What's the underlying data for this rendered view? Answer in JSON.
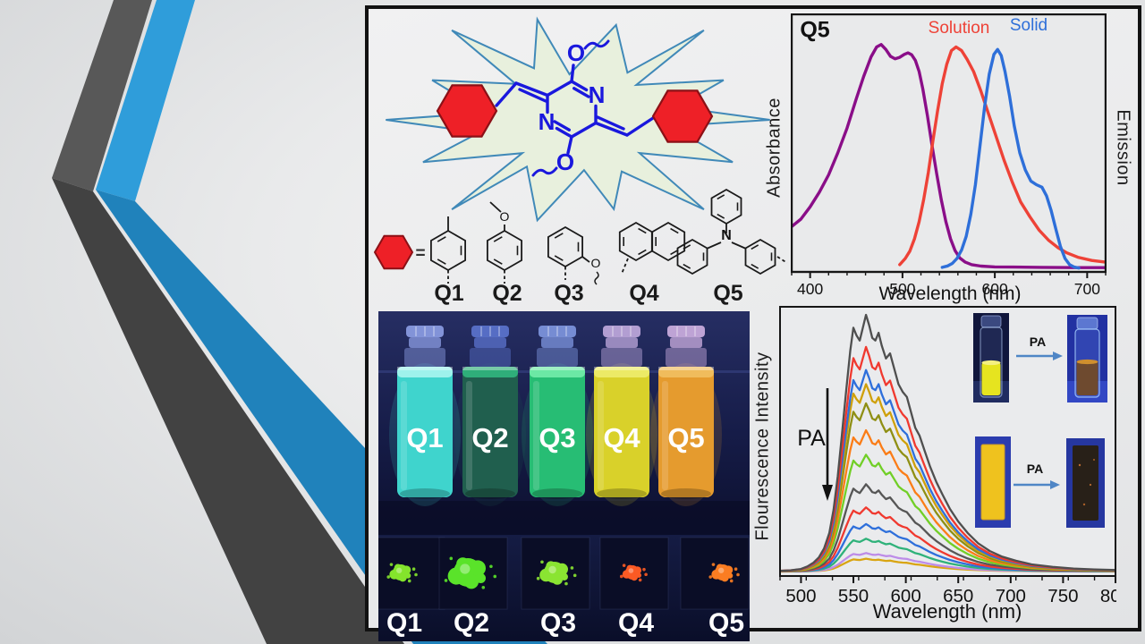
{
  "slide": {
    "ribbon_gray": "#585858",
    "ribbon_gray_dark": "#424242",
    "ribbon_blue": "#2f9dda",
    "ribbon_blue_dark": "#2082bb"
  },
  "figure": {
    "panel_border": "#121212",
    "scheme": {
      "equals_sign": "=",
      "atoms": {
        "n_right": "N",
        "n_left": "N",
        "o_top": "O",
        "o_bottom": "O"
      },
      "substituents": [
        {
          "label": "Q1",
          "atom": ""
        },
        {
          "label": "Q2",
          "atom": "O"
        },
        {
          "label": "Q3",
          "atom": "O"
        },
        {
          "label": "Q4",
          "atom": ""
        },
        {
          "label": "Q5",
          "atom": "N"
        }
      ],
      "colors": {
        "molecule": "#1a18dd",
        "aryl": "#ee2027",
        "aryl_edge": "#8c1016",
        "burst_fill": "#e8f0dd",
        "burst_edge": "#4089b8",
        "bond": "#1a1a1a"
      }
    },
    "photo": {
      "vials": [
        {
          "label": "Q1",
          "glow": "#3fd4cd",
          "bright": "#9ef2ec",
          "cap": "#8d9fe6"
        },
        {
          "label": "Q2",
          "glow": "#205f4e",
          "bright": "#2fae7a",
          "cap": "#5c74cf"
        },
        {
          "label": "Q3",
          "glow": "#27bd74",
          "bright": "#6ce8a5",
          "cap": "#7f97e0"
        },
        {
          "label": "Q4",
          "glow": "#d9d12a",
          "bright": "#ecea66",
          "cap": "#c2abdf"
        },
        {
          "label": "Q5",
          "glow": "#e59b2e",
          "bright": "#f0bc5c",
          "cap": "#cfb0e2"
        }
      ],
      "powders": [
        {
          "label": "Q1",
          "color": "#84e42c",
          "size": 9
        },
        {
          "label": "Q2",
          "color": "#5ae32a",
          "size": 16
        },
        {
          "label": "Q3",
          "color": "#8ae432",
          "size": 12
        },
        {
          "label": "Q4",
          "color": "#fb5a24",
          "size": 8
        },
        {
          "label": "Q5",
          "color": "#fb7d22",
          "size": 9
        }
      ]
    }
  },
  "chart_data": [
    {
      "id": "spectra",
      "type": "line",
      "title": "Q5",
      "xlabel": "Wavelength (nm)",
      "ylabel_left": "Absorbance",
      "ylabel_right": "Emission",
      "xlim": [
        380,
        720
      ],
      "xticks": [
        400,
        500,
        600,
        700
      ],
      "xminor_step": 20,
      "grid": false,
      "legend": [
        {
          "label": "Solution",
          "color": "#ee4237"
        },
        {
          "label": "Solid",
          "color": "#2e6fd9"
        }
      ],
      "series": [
        {
          "name": "Absorbance (solution)",
          "color": "#8a0e88",
          "x": [
            380,
            390,
            400,
            410,
            420,
            430,
            440,
            450,
            458,
            466,
            472,
            477,
            482,
            487,
            492,
            497,
            502,
            506,
            510,
            514,
            518,
            522,
            527,
            532,
            537,
            542,
            547,
            552,
            557,
            562,
            568,
            575,
            585,
            600,
            620,
            650,
            690,
            720
          ],
          "y": [
            0.17,
            0.2,
            0.25,
            0.31,
            0.38,
            0.47,
            0.57,
            0.69,
            0.78,
            0.86,
            0.9,
            0.91,
            0.89,
            0.862,
            0.852,
            0.858,
            0.87,
            0.876,
            0.868,
            0.845,
            0.8,
            0.73,
            0.62,
            0.5,
            0.385,
            0.28,
            0.19,
            0.12,
            0.072,
            0.042,
            0.025,
            0.015,
            0.009,
            0.006,
            0.005,
            0.004,
            0.003,
            0.003
          ]
        },
        {
          "name": "Solution emission",
          "color": "#ee4237",
          "x": [
            497,
            503,
            508,
            513,
            518,
            523,
            528,
            533,
            538,
            543,
            548,
            553,
            558,
            564,
            570,
            577,
            585,
            593,
            601,
            610,
            619,
            628,
            638,
            648,
            658,
            668,
            678,
            690,
            705,
            720
          ],
          "y": [
            0.015,
            0.04,
            0.07,
            0.12,
            0.19,
            0.28,
            0.39,
            0.52,
            0.64,
            0.75,
            0.83,
            0.885,
            0.9,
            0.885,
            0.85,
            0.8,
            0.72,
            0.63,
            0.54,
            0.44,
            0.35,
            0.27,
            0.21,
            0.155,
            0.115,
            0.085,
            0.063,
            0.045,
            0.032,
            0.025
          ]
        },
        {
          "name": "Solid emission",
          "color": "#2e6fd9",
          "x": [
            543,
            549,
            554,
            559,
            564,
            569,
            574,
            579,
            584,
            589,
            594,
            599,
            603,
            607,
            611,
            616,
            621,
            627,
            633,
            639,
            645,
            651,
            656,
            661,
            666,
            671,
            676,
            681,
            686,
            691
          ],
          "y": [
            0.004,
            0.01,
            0.02,
            0.04,
            0.075,
            0.13,
            0.22,
            0.34,
            0.5,
            0.66,
            0.79,
            0.87,
            0.89,
            0.865,
            0.8,
            0.7,
            0.58,
            0.47,
            0.4,
            0.355,
            0.34,
            0.33,
            0.295,
            0.235,
            0.16,
            0.09,
            0.04,
            0.015,
            0.005,
            0.001
          ]
        }
      ]
    },
    {
      "id": "quench",
      "type": "line",
      "xlabel": "Wavelength (nm)",
      "ylabel": "Flourescence Intensity",
      "xlim": [
        480,
        800
      ],
      "xticks": [
        500,
        550,
        600,
        650,
        700,
        750,
        800
      ],
      "xminor_step": 25,
      "grid": false,
      "annotation": "PA",
      "base_profile": {
        "x": [
          480,
          490,
          500,
          506,
          512,
          517,
          522,
          527,
          531,
          535,
          539,
          543,
          547,
          550,
          553,
          556,
          559,
          562,
          565,
          568,
          571,
          574,
          577,
          581,
          585,
          589,
          593,
          597,
          601,
          605,
          609,
          613,
          618,
          623,
          629,
          635,
          642,
          650,
          659,
          669,
          680,
          692,
          705,
          720,
          740,
          760,
          780,
          800
        ],
        "y": [
          0.003,
          0.005,
          0.01,
          0.02,
          0.035,
          0.055,
          0.09,
          0.15,
          0.24,
          0.37,
          0.53,
          0.7,
          0.86,
          0.95,
          0.92,
          0.9,
          0.95,
          1.0,
          0.96,
          0.91,
          0.9,
          0.93,
          0.88,
          0.83,
          0.85,
          0.79,
          0.73,
          0.7,
          0.68,
          0.62,
          0.56,
          0.53,
          0.47,
          0.41,
          0.35,
          0.3,
          0.245,
          0.195,
          0.15,
          0.11,
          0.08,
          0.058,
          0.042,
          0.028,
          0.018,
          0.012,
          0.008,
          0.006
        ]
      },
      "series": [
        {
          "scale": 1.0,
          "color": "#4f4f4f"
        },
        {
          "scale": 0.875,
          "color": "#f0392f"
        },
        {
          "scale": 0.785,
          "color": "#2e6fdb"
        },
        {
          "scale": 0.73,
          "color": "#cfa00a"
        },
        {
          "scale": 0.655,
          "color": "#8f8f14"
        },
        {
          "scale": 0.55,
          "color": "#fb7d17"
        },
        {
          "scale": 0.455,
          "color": "#71cf27"
        },
        {
          "scale": 0.34,
          "color": "#565656"
        },
        {
          "scale": 0.25,
          "color": "#f0392f"
        },
        {
          "scale": 0.185,
          "color": "#2e6fdb"
        },
        {
          "scale": 0.128,
          "color": "#2fb27a"
        },
        {
          "scale": 0.072,
          "color": "#bd8ce8"
        },
        {
          "scale": 0.05,
          "color": "#d9a513"
        }
      ],
      "insets": [
        {
          "arrow_label": "PA",
          "type": "solution"
        },
        {
          "arrow_label": "PA",
          "type": "solid"
        }
      ]
    }
  ]
}
